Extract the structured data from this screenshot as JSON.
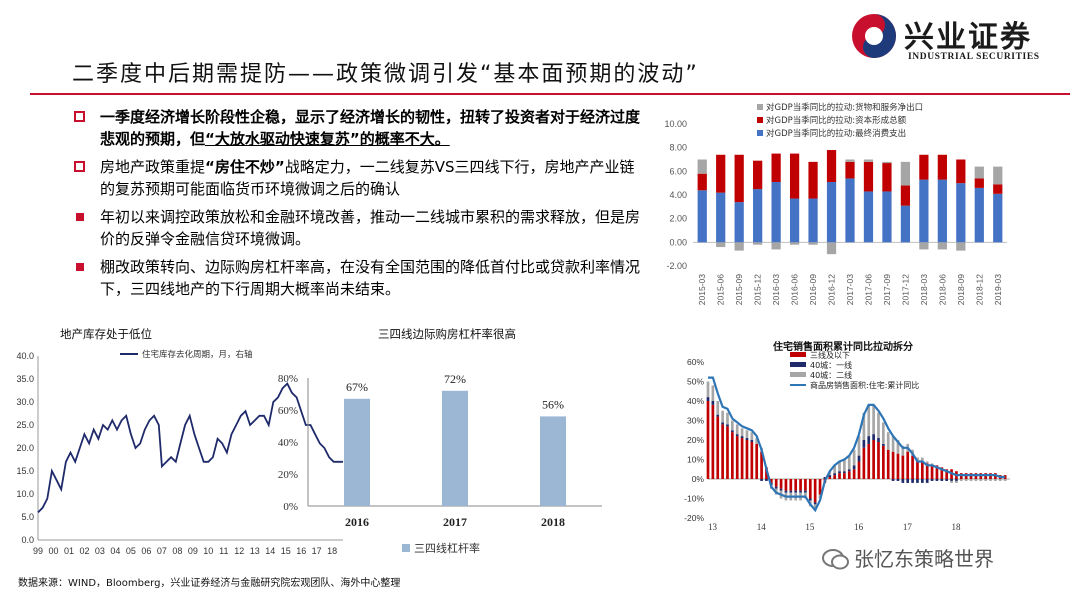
{
  "header": {
    "logo_cn": "兴业证券",
    "logo_en": "INDUSTRIAL SECURITIES",
    "title": "二季度中后期需提防——政策微调引发“基本面预期的波动”"
  },
  "bullets": [
    {
      "marker": "box",
      "bold": true,
      "text": "一季度经济增长阶段性企稳，显示了经济增长的韧性，扭转了投资者对于经济过度悲观的预期，但",
      "quote": "“大放水驱动快速复苏”的概率不大。"
    },
    {
      "marker": "box",
      "bold": false,
      "text_pre": "房地产政策重提",
      "text_bold": "“房住不炒”",
      "text_post": "战略定力，一二线复苏VS三四线下行，房地产产业链的复苏预期可能面临货币环境微调之后的确认"
    },
    {
      "marker": "square",
      "bold": false,
      "text": "年初以来调控政策放松和金融环境改善，推动一二线城市累积的需求释放，但是房价的反弹令金融信贷环境微调。"
    },
    {
      "marker": "square",
      "bold": false,
      "text": "棚改政策转向、边际购房杠杆率高，在没有全国范围的降低首付比或贷款利率情况下，三四线地产的下行周期大概率尚未结束。"
    }
  ],
  "source": "数据来源：WIND，Bloomberg，兴业证券经济与金融研究院宏观团队、海外中心整理",
  "watermark": "张忆东策略世界",
  "colors": {
    "brand_red": "#c8102e",
    "gdp_blue": "#4472c4",
    "gdp_red": "#c00000",
    "gdp_gray": "#a6a6a6",
    "bar_blue": "#9bb7d4",
    "line_navy": "#1f2a6b"
  },
  "chart_data": [
    {
      "id": "gdp",
      "type": "bar",
      "stacked": true,
      "categories": [
        "2015-03",
        "2015-06",
        "2015-09",
        "2015-12",
        "2016-03",
        "2016-06",
        "2016-09",
        "2016-12",
        "2017-03",
        "2017-06",
        "2017-09",
        "2017-12",
        "2018-03",
        "2018-06",
        "2018-09",
        "2018-12",
        "2019-03"
      ],
      "series": [
        {
          "name": "对GDP当季同比的拉动:最终消费支出",
          "color": "#4472c4",
          "values": [
            4.4,
            4.2,
            3.4,
            4.5,
            5.1,
            3.7,
            3.7,
            5.1,
            5.4,
            4.3,
            4.3,
            3.1,
            5.3,
            5.3,
            5.0,
            4.6,
            4.1
          ]
        },
        {
          "name": "对GDP当季同比的拉动:资本形成总额",
          "color": "#c00000",
          "values": [
            1.4,
            3.2,
            4.0,
            2.4,
            2.4,
            3.8,
            3.1,
            2.7,
            1.4,
            2.5,
            2.4,
            1.7,
            2.1,
            2.1,
            2.0,
            0.8,
            0.8
          ]
        },
        {
          "name": "对GDP当季同比的拉动:货物和服务净出口",
          "color": "#a6a6a6",
          "values": [
            1.2,
            -0.4,
            -0.7,
            -0.2,
            -0.6,
            -0.2,
            -0.2,
            -1.0,
            0.2,
            0.2,
            0.1,
            2.0,
            -0.6,
            -0.6,
            -0.7,
            1.0,
            1.5
          ]
        }
      ],
      "ylim": [
        -2,
        10
      ],
      "yticks": [
        "-2.00",
        "0.00",
        "2.00",
        "4.00",
        "6.00",
        "8.00",
        "10.00"
      ],
      "legend": "top"
    },
    {
      "id": "inventory",
      "type": "line",
      "title": "地产库存处于低位",
      "series_name": "住宅库存去化周期，月，右轴",
      "color": "#1f2a6b",
      "x_ticks": [
        "99",
        "00",
        "01",
        "02",
        "03",
        "04",
        "05",
        "06",
        "07",
        "08",
        "09",
        "10",
        "11",
        "12",
        "13",
        "14",
        "15",
        "16",
        "17",
        "18"
      ],
      "xlim": [
        1999,
        2018.7
      ],
      "ylim": [
        0,
        40
      ],
      "yticks": [
        "0.0",
        "5.0",
        "10.0",
        "15.0",
        "20.0",
        "25.0",
        "30.0",
        "35.0",
        "40.0"
      ],
      "x": [
        1999.0,
        1999.3,
        1999.6,
        1999.9,
        2000.2,
        2000.5,
        2000.8,
        2001.1,
        2001.4,
        2001.7,
        2002.0,
        2002.3,
        2002.6,
        2002.9,
        2003.2,
        2003.5,
        2003.8,
        2004.1,
        2004.4,
        2004.7,
        2005.0,
        2005.3,
        2005.6,
        2005.9,
        2006.2,
        2006.5,
        2006.8,
        2007.0,
        2007.3,
        2007.6,
        2007.9,
        2008.2,
        2008.5,
        2008.8,
        2009.1,
        2009.4,
        2009.7,
        2010.0,
        2010.3,
        2010.6,
        2010.9,
        2011.2,
        2011.5,
        2011.8,
        2012.1,
        2012.4,
        2012.7,
        2013.0,
        2013.3,
        2013.6,
        2013.9,
        2014.2,
        2014.5,
        2014.8,
        2015.1,
        2015.4,
        2015.7,
        2016.0,
        2016.3,
        2016.6,
        2016.9,
        2017.2,
        2017.5,
        2017.8,
        2018.1,
        2018.4,
        2018.7
      ],
      "y": [
        6,
        7,
        9,
        15,
        13,
        11,
        17,
        19,
        17,
        20,
        23,
        21,
        24,
        22,
        25,
        24,
        26,
        24,
        26,
        27,
        23,
        20,
        21,
        24,
        26,
        27,
        25,
        16,
        17,
        18,
        17,
        21,
        25,
        27,
        23,
        20,
        17,
        17,
        18,
        22,
        21,
        19,
        23,
        25,
        27,
        28,
        25,
        26,
        27,
        27,
        25,
        30,
        31,
        33,
        34,
        32,
        31,
        28,
        25,
        25,
        23,
        21,
        20,
        18,
        17,
        17,
        17
      ]
    },
    {
      "id": "leverage",
      "type": "bar",
      "title": "三四线边际购房杠杆率很高",
      "series_name": "三四线杠杆率",
      "color": "#9bb7d4",
      "categories": [
        "2016",
        "2017",
        "2018"
      ],
      "values": [
        67,
        72,
        56
      ],
      "labels": [
        "67%",
        "72%",
        "56%"
      ],
      "ylim": [
        0,
        80
      ],
      "yticks": [
        "0%",
        "20%",
        "40%",
        "60%",
        "80%"
      ]
    },
    {
      "id": "sales",
      "type": "bar",
      "title": "住宅销售面积累计同比拉动拆分",
      "legend_entries": [
        "三线及以下",
        "40城：一线",
        "40城：二线",
        "商品房销售面积:住宅:累计同比"
      ],
      "legend_colors": [
        "#c00000",
        "#1f2a6b",
        "#a6a6a6",
        "#2e75b6"
      ],
      "x_ticks": [
        "13",
        "14",
        "15",
        "16",
        "17",
        "18"
      ],
      "xlim": [
        2013.0,
        2019.2
      ],
      "ylim": [
        -20,
        60
      ],
      "yticks": [
        "-20%",
        "-10%",
        "0%",
        "10%",
        "20%",
        "30%",
        "40%",
        "50%",
        "60%"
      ],
      "months": [
        2013.0,
        2013.1,
        2013.2,
        2013.3,
        2013.4,
        2013.5,
        2013.6,
        2013.7,
        2013.8,
        2013.9,
        2014.0,
        2014.1,
        2014.2,
        2014.3,
        2014.4,
        2014.5,
        2014.6,
        2014.7,
        2014.8,
        2014.9,
        2015.0,
        2015.1,
        2015.2,
        2015.3,
        2015.4,
        2015.5,
        2015.6,
        2015.7,
        2015.8,
        2015.9,
        2016.0,
        2016.1,
        2016.2,
        2016.3,
        2016.4,
        2016.5,
        2016.6,
        2016.7,
        2016.8,
        2016.9,
        2017.0,
        2017.1,
        2017.2,
        2017.3,
        2017.4,
        2017.5,
        2017.6,
        2017.7,
        2017.8,
        2017.9,
        2018.0,
        2018.1,
        2018.2,
        2018.3,
        2018.4,
        2018.5,
        2018.6,
        2018.7,
        2018.8,
        2018.9,
        2019.0,
        2019.1
      ],
      "tier3": [
        40,
        38,
        32,
        28,
        27,
        24,
        22,
        21,
        20,
        19,
        18,
        14,
        6,
        -2,
        -4,
        -5,
        -6,
        -6,
        -6,
        -6,
        -6,
        -10,
        -12,
        -8,
        -2,
        1,
        2,
        3,
        3,
        4,
        5,
        9,
        16,
        18,
        20,
        19,
        17,
        15,
        14,
        13,
        12,
        14,
        12,
        9,
        9,
        8,
        7,
        7,
        6,
        5,
        5,
        4,
        3,
        3,
        3,
        3,
        3,
        3,
        3,
        3,
        2,
        2
      ],
      "tier1": [
        2,
        2,
        1,
        1,
        1,
        1,
        1,
        1,
        1,
        1,
        0,
        -1,
        -1,
        -1,
        -1,
        -1,
        -1,
        -1,
        -1,
        -1,
        -1,
        -1,
        -1,
        0,
        1,
        1,
        1,
        1,
        1,
        1,
        2,
        3,
        4,
        4,
        3,
        2,
        1,
        0,
        -1,
        -1,
        -2,
        -2,
        -2,
        -2,
        -2,
        -2,
        -1,
        -1,
        -1,
        -1,
        -1,
        -1,
        0,
        0,
        0,
        0,
        0,
        0,
        0,
        0,
        0,
        0
      ],
      "tier2": [
        8,
        8,
        7,
        6,
        6,
        5,
        5,
        4,
        4,
        4,
        3,
        2,
        0,
        -2,
        -3,
        -4,
        -4,
        -4,
        -4,
        -4,
        -3,
        -3,
        -3,
        -2,
        0,
        2,
        4,
        5,
        6,
        7,
        8,
        10,
        14,
        16,
        15,
        13,
        11,
        9,
        8,
        7,
        5,
        4,
        3,
        2,
        2,
        1,
        1,
        0,
        0,
        0,
        -1,
        -1,
        -1,
        -1,
        -1,
        -1,
        -1,
        -1,
        -1,
        -1,
        -1,
        -1
      ],
      "total": [
        52,
        52,
        44,
        37,
        36,
        31,
        29,
        27,
        26,
        25,
        22,
        15,
        5,
        -4,
        -7,
        -8,
        -9,
        -9,
        -9,
        -9,
        -9,
        -13,
        -16,
        -11,
        -1,
        4,
        7,
        9,
        10,
        12,
        16,
        23,
        33,
        38,
        38,
        35,
        31,
        26,
        22,
        19,
        16,
        16,
        13,
        9,
        9,
        7,
        7,
        6,
        5,
        4,
        3,
        2,
        2,
        2,
        2,
        2,
        2,
        2,
        2,
        2,
        1,
        1
      ]
    }
  ]
}
